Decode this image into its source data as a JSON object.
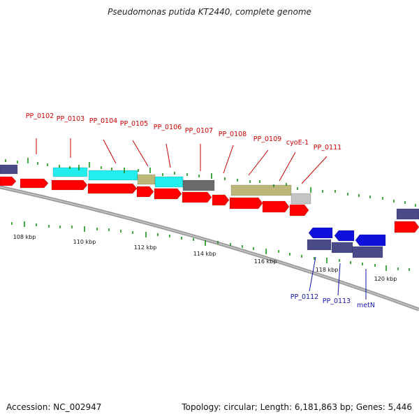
{
  "title": "Pseudomonas putida KT2440, complete genome",
  "footer": {
    "accession": "Accession: NC_002947",
    "summary": "Topology: circular; Length: 6,181,863 bp; Genes: 5,446"
  },
  "colors": {
    "cds": "#ff0000",
    "cds_minus": "#1010dd",
    "cyan_feature": "#22eeee",
    "olive_feature": "#bdb879",
    "gray_feature": "#6a6a6a",
    "light_gray_feature": "#c4c4c4",
    "purple_feature": "#4a4a88",
    "label_top": "#cc0000",
    "label_bottom": "#1515aa",
    "tick": "#0a8a0a",
    "backbone": "#808080"
  },
  "scale": {
    "ticks": [
      "108 kbp",
      "110 kbp",
      "112 kbp",
      "114 kbp",
      "116 kbp",
      "118 kbp",
      "120 kbp"
    ]
  },
  "genes_top": [
    "PP_0102",
    "PP_0103",
    "PP_0104",
    "PP_0105",
    "PP_0106",
    "PP_0107",
    "PP_0108",
    "PP_0109",
    "cyoE-1",
    "PP_0111"
  ],
  "genes_bottom": [
    "PP_0112",
    "PP_0113",
    "metN"
  ]
}
